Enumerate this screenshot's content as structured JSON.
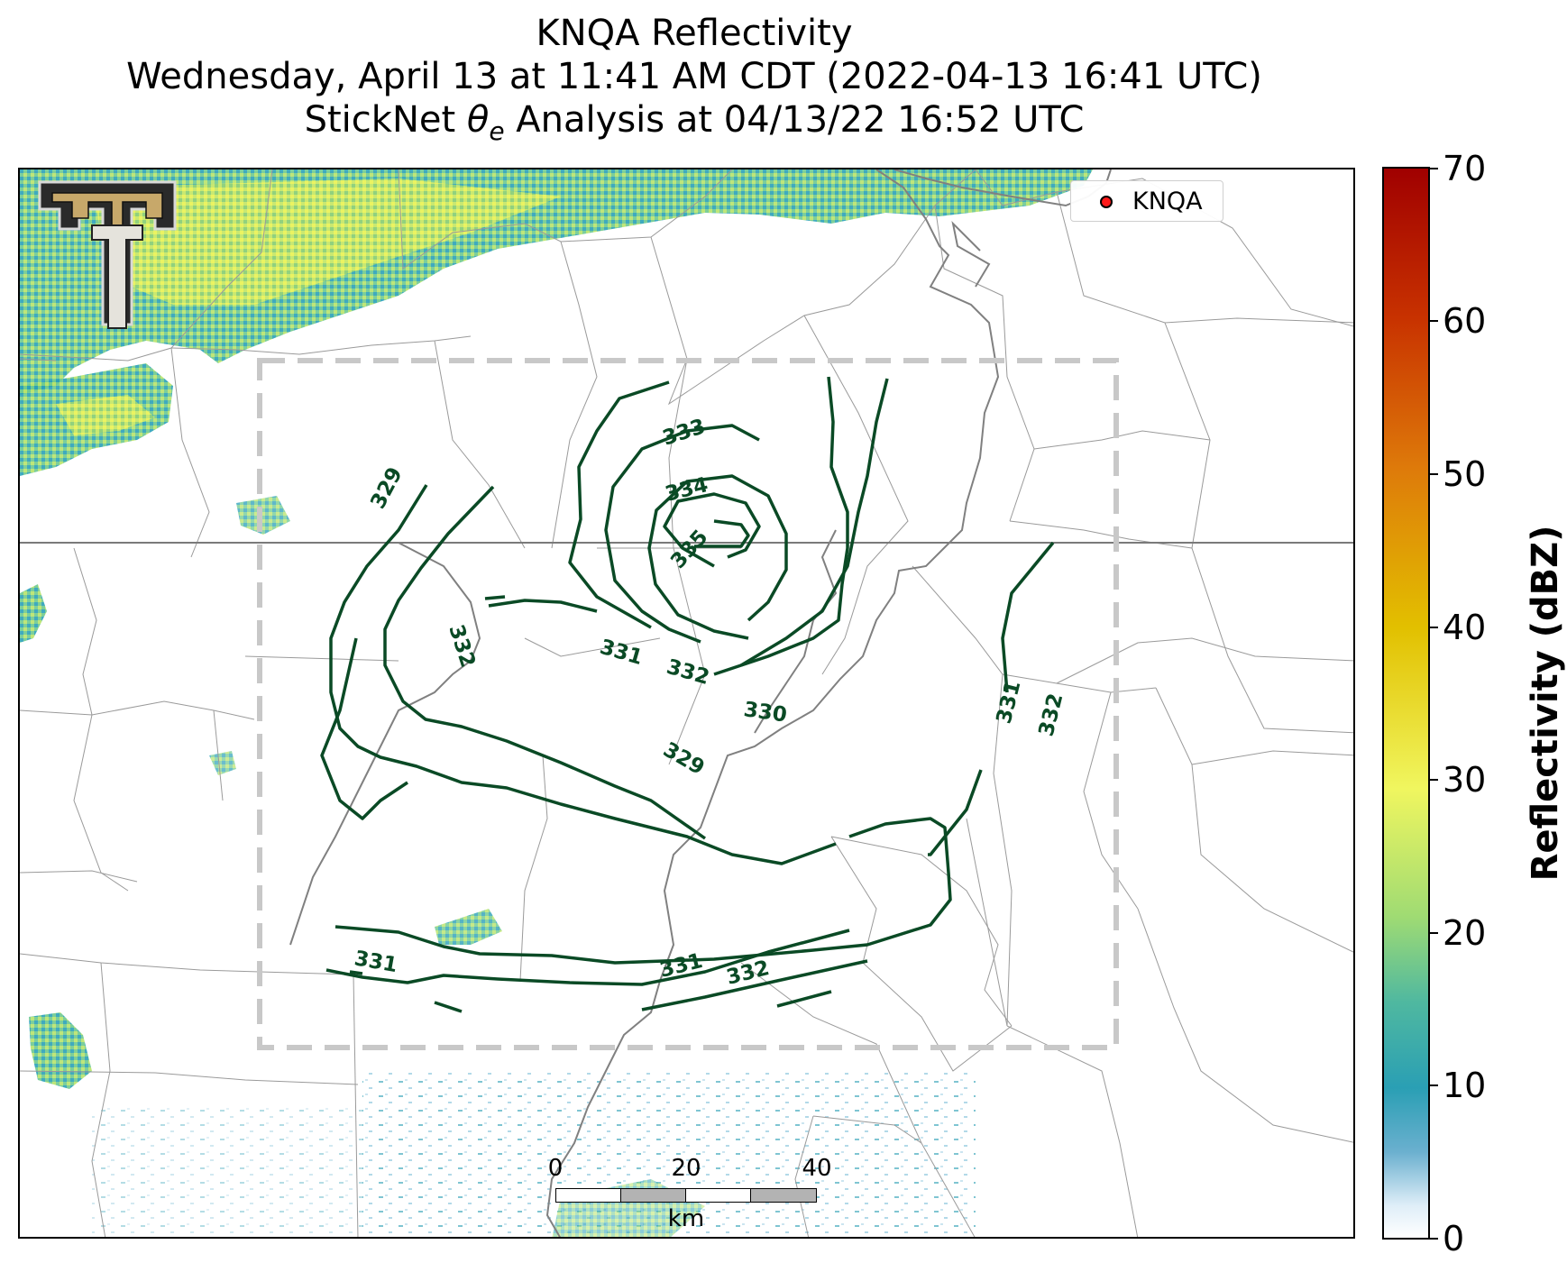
{
  "title": {
    "line1": "KNQA Reflectivity",
    "line2": "Wednesday, April 13 at 11:41 AM CDT (2022-04-13 16:41 UTC)",
    "line3_prefix": "StickNet ",
    "line3_symbol": "θ",
    "line3_sub": "e",
    "line3_suffix": " Analysis at 04/13/22 16:52 UTC"
  },
  "legend": {
    "marker_color": "#ff1a1a",
    "label": "KNQA"
  },
  "colorbar": {
    "label": "Reflectivity (dBZ)",
    "ticks": [
      "0",
      "10",
      "20",
      "30",
      "40",
      "50",
      "60",
      "70"
    ],
    "range": [
      0,
      70
    ]
  },
  "scalebar": {
    "labels": [
      "0",
      "20",
      "40"
    ],
    "unit": "km"
  },
  "contours": {
    "color": "#0a4a25",
    "labels": [
      "329",
      "333",
      "334",
      "335",
      "332",
      "331",
      "332",
      "330",
      "329",
      "331",
      "332",
      "331",
      "331",
      "332"
    ]
  },
  "logo": {
    "name": "Texas Tech Double T"
  },
  "analysis_box": {
    "style": "dashed",
    "color": "#c8c8c8"
  }
}
